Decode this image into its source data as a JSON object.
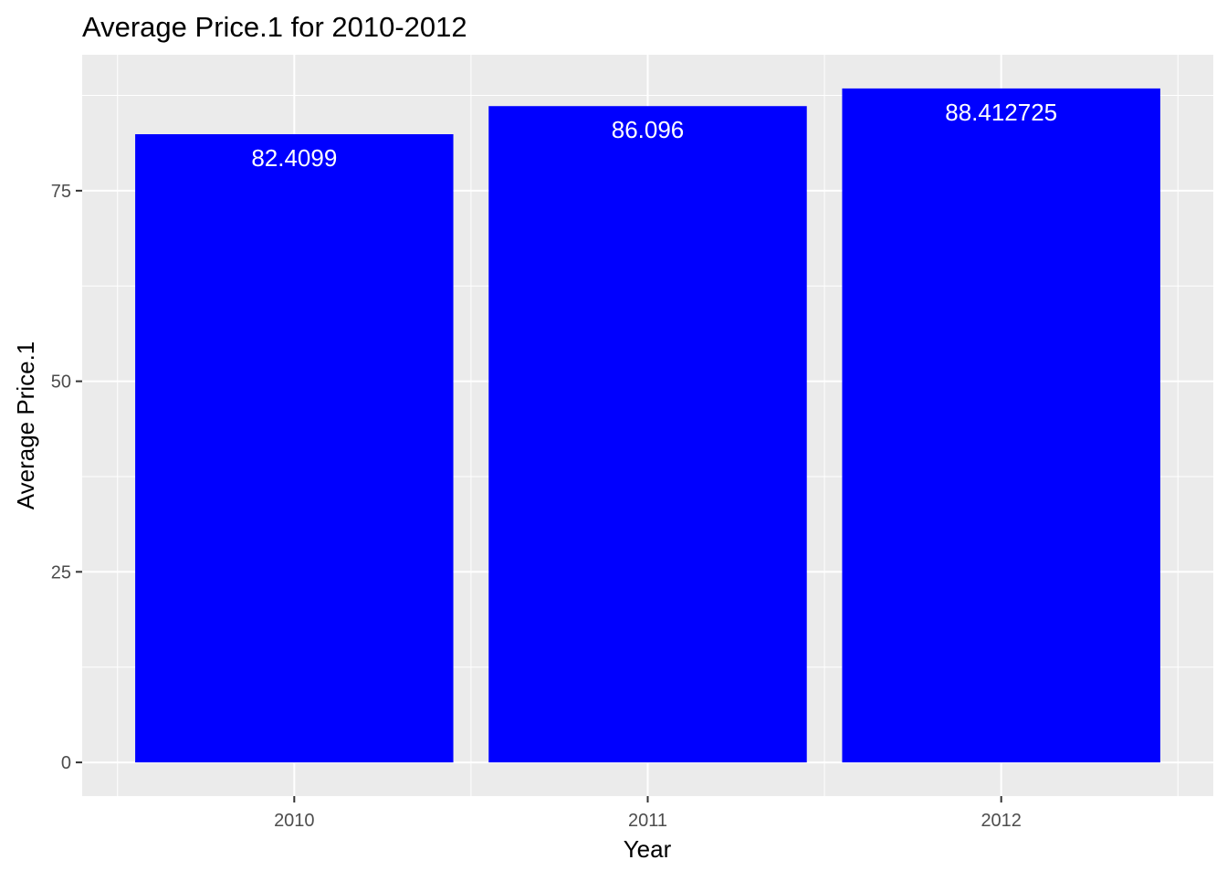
{
  "chart_data": {
    "type": "bar",
    "title": "Average Price.1 for 2010-2012",
    "xlabel": "Year",
    "ylabel": "Average Price.1",
    "categories": [
      "2010",
      "2011",
      "2012"
    ],
    "values": [
      82.4099,
      86.096,
      88.412725
    ],
    "value_labels": [
      "82.4099",
      "86.096",
      "88.412725"
    ],
    "y_ticks": [
      0,
      25,
      50,
      75
    ],
    "y_tick_labels": [
      "0",
      "25",
      "50",
      "75"
    ],
    "ylim": [
      -4.42,
      92.83
    ],
    "grid": true,
    "legend": "none",
    "colors": {
      "bar": "#0000ff",
      "panel": "#ebebeb",
      "grid": "#ffffff",
      "bar_label": "#ffffff"
    }
  }
}
